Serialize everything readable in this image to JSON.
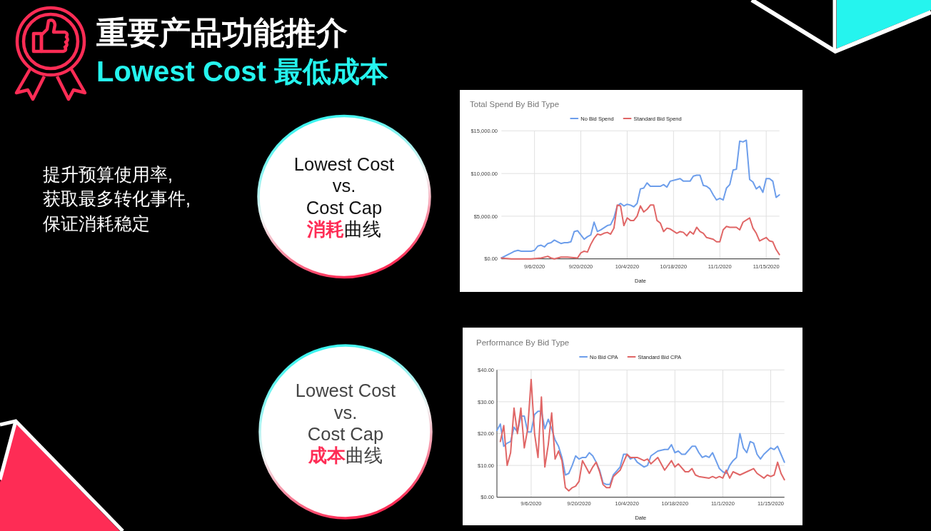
{
  "chart_data": [
    {
      "type": "other",
      "title": "重要产品功能推介",
      "subtitle": "Lowest Cost 最低成本",
      "annotations": [
        "提升预算使用率,",
        "获取最多转化事件,",
        "保证消耗稳定"
      ]
    },
    {
      "type": "other",
      "annotations": [
        "Lowest Cost",
        "vs.",
        "Cost Cap",
        "消耗",
        "曲线"
      ]
    },
    {
      "type": "line",
      "title": "Total Spend By Bid Type",
      "xlabel": "Date",
      "legend": "top",
      "grid": true,
      "xlim": [
        "2020-08-27",
        "2020-11-19"
      ],
      "xticks": [
        {
          "value": "2020-09-06",
          "label": "9/6/2020"
        },
        {
          "value": "2020-09-20",
          "label": "9/20/2020"
        },
        {
          "value": "2020-10-04",
          "label": "10/4/2020"
        },
        {
          "value": "2020-10-18",
          "label": "10/18/2020"
        },
        {
          "value": "2020-11-01",
          "label": "11/1/2020"
        },
        {
          "value": "2020-11-15",
          "label": "11/15/2020"
        }
      ],
      "ylim": [
        0,
        15000
      ],
      "yticks": [
        {
          "value": 0,
          "label": "$0.00"
        },
        {
          "value": 5000,
          "label": "$5,000.00"
        },
        {
          "value": 10000,
          "label": "$10,000.00"
        },
        {
          "value": 15000,
          "label": "$15,000.00"
        }
      ],
      "series": [
        {
          "name": "No Bid Spend",
          "color": "#6d9eeb",
          "x": [
            "2020-08-27",
            "2020-08-29",
            "2020-08-30",
            "2020-08-31",
            "2020-09-01",
            "2020-09-02",
            "2020-09-03",
            "2020-09-05",
            "2020-09-06",
            "2020-09-07",
            "2020-09-08",
            "2020-09-09",
            "2020-09-10",
            "2020-09-11",
            "2020-09-12",
            "2020-09-13",
            "2020-09-14",
            "2020-09-15",
            "2020-09-16",
            "2020-09-17",
            "2020-09-18",
            "2020-09-19",
            "2020-09-21",
            "2020-09-22",
            "2020-09-23",
            "2020-09-24",
            "2020-09-25",
            "2020-09-26",
            "2020-09-28",
            "2020-09-29",
            "2020-09-30",
            "2020-10-01",
            "2020-10-02",
            "2020-10-03",
            "2020-10-04",
            "2020-10-05",
            "2020-10-06",
            "2020-10-07",
            "2020-10-08",
            "2020-10-09",
            "2020-10-10",
            "2020-10-11",
            "2020-10-14",
            "2020-10-15",
            "2020-10-16",
            "2020-10-17",
            "2020-10-19",
            "2020-10-20",
            "2020-10-21",
            "2020-10-23",
            "2020-10-24",
            "2020-10-25",
            "2020-10-26",
            "2020-10-27",
            "2020-10-28",
            "2020-10-29",
            "2020-10-30",
            "2020-10-31",
            "2020-11-01",
            "2020-11-02",
            "2020-11-03",
            "2020-11-04",
            "2020-11-05",
            "2020-11-06",
            "2020-11-07",
            "2020-11-08",
            "2020-11-09",
            "2020-11-10",
            "2020-11-11",
            "2020-11-12",
            "2020-11-13",
            "2020-11-14",
            "2020-11-15",
            "2020-11-16",
            "2020-11-17",
            "2020-11-18",
            "2020-11-19"
          ],
          "values": [
            100,
            500,
            700,
            900,
            1000,
            900,
            900,
            900,
            1000,
            1500,
            1600,
            1400,
            1800,
            1900,
            2200,
            2000,
            1800,
            1900,
            1900,
            2000,
            3200,
            3300,
            2300,
            2600,
            2800,
            4300,
            3200,
            3400,
            3900,
            4000,
            4800,
            6200,
            6500,
            6200,
            6400,
            6300,
            6100,
            6500,
            8200,
            8300,
            8900,
            8500,
            8500,
            8700,
            8400,
            9100,
            9300,
            9400,
            9100,
            9100,
            9700,
            9800,
            9800,
            8600,
            8500,
            8200,
            7500,
            6900,
            7100,
            6900,
            8300,
            8700,
            10400,
            10500,
            13800,
            13700,
            13900,
            9300,
            9000,
            8200,
            8500,
            7800,
            9400,
            9400,
            9100,
            7200,
            7500
          ]
        },
        {
          "name": "Standard Bid Spend",
          "color": "#e06666",
          "x": [
            "2020-08-27",
            "2020-08-30",
            "2020-09-05",
            "2020-09-08",
            "2020-09-10",
            "2020-09-11",
            "2020-09-12",
            "2020-09-14",
            "2020-09-16",
            "2020-09-19",
            "2020-09-20",
            "2020-09-21",
            "2020-09-22",
            "2020-09-23",
            "2020-09-24",
            "2020-09-25",
            "2020-09-26",
            "2020-09-27",
            "2020-09-28",
            "2020-09-29",
            "2020-09-30",
            "2020-10-01",
            "2020-10-02",
            "2020-10-03",
            "2020-10-04",
            "2020-10-05",
            "2020-10-06",
            "2020-10-07",
            "2020-10-08",
            "2020-10-09",
            "2020-10-10",
            "2020-10-11",
            "2020-10-12",
            "2020-10-13",
            "2020-10-14",
            "2020-10-15",
            "2020-10-16",
            "2020-10-17",
            "2020-10-19",
            "2020-10-20",
            "2020-10-21",
            "2020-10-22",
            "2020-10-23",
            "2020-10-24",
            "2020-10-25",
            "2020-10-26",
            "2020-10-27",
            "2020-10-28",
            "2020-10-30",
            "2020-10-31",
            "2020-11-01",
            "2020-11-02",
            "2020-11-03",
            "2020-11-04",
            "2020-11-05",
            "2020-11-06",
            "2020-11-07",
            "2020-11-08",
            "2020-11-10",
            "2020-11-11",
            "2020-11-12",
            "2020-11-13",
            "2020-11-14",
            "2020-11-15",
            "2020-11-16",
            "2020-11-17",
            "2020-11-18",
            "2020-11-19"
          ],
          "values": [
            100,
            0,
            0,
            100,
            300,
            100,
            0,
            200,
            200,
            100,
            700,
            900,
            800,
            1700,
            2400,
            2900,
            2800,
            3000,
            3100,
            2900,
            3600,
            6300,
            6200,
            3900,
            4800,
            4500,
            4500,
            5000,
            6200,
            5500,
            5800,
            6300,
            6300,
            4500,
            4200,
            3200,
            3600,
            3500,
            3000,
            3200,
            3100,
            2700,
            3200,
            2900,
            3700,
            3200,
            3000,
            2500,
            2300,
            2000,
            2000,
            3400,
            3800,
            3700,
            3700,
            3700,
            3400,
            4300,
            4800,
            3600,
            3000,
            2100,
            2300,
            2500,
            2100,
            2000,
            1100,
            500
          ]
        }
      ]
    },
    {
      "type": "other",
      "annotations": [
        "Lowest Cost",
        "vs.",
        "Cost Cap",
        "成本",
        "曲线"
      ]
    },
    {
      "type": "line",
      "title": "Performance By Bid Type",
      "xlabel": "Date",
      "legend": "top",
      "grid": true,
      "xlim": [
        "2020-08-27",
        "2020-11-19"
      ],
      "xticks": [
        {
          "value": "2020-09-06",
          "label": "9/6/2020"
        },
        {
          "value": "2020-09-20",
          "label": "9/20/2020"
        },
        {
          "value": "2020-10-04",
          "label": "10/4/2020"
        },
        {
          "value": "2020-10-18",
          "label": "10/18/2020"
        },
        {
          "value": "2020-11-01",
          "label": "11/1/2020"
        },
        {
          "value": "2020-11-15",
          "label": "11/15/2020"
        }
      ],
      "ylim": [
        0,
        40
      ],
      "yticks": [
        {
          "value": 0,
          "label": "$0.00"
        },
        {
          "value": 10,
          "label": "$10.00"
        },
        {
          "value": 20,
          "label": "$20.00"
        },
        {
          "value": 30,
          "label": "$30.00"
        },
        {
          "value": 40,
          "label": "$40.00"
        }
      ],
      "series": [
        {
          "name": "No Bid CPA",
          "color": "#6d9eeb",
          "x": [
            "2020-08-27",
            "2020-08-28",
            "2020-08-29",
            "2020-08-30",
            "2020-08-31",
            "2020-09-01",
            "2020-09-02",
            "2020-09-03",
            "2020-09-04",
            "2020-09-05",
            "2020-09-06",
            "2020-09-07",
            "2020-09-08",
            "2020-09-09",
            "2020-09-10",
            "2020-09-11",
            "2020-09-12",
            "2020-09-13",
            "2020-09-14",
            "2020-09-15",
            "2020-09-16",
            "2020-09-17",
            "2020-09-18",
            "2020-09-19",
            "2020-09-20",
            "2020-09-21",
            "2020-09-22",
            "2020-09-23",
            "2020-09-24",
            "2020-09-25",
            "2020-09-26",
            "2020-09-27",
            "2020-09-28",
            "2020-09-29",
            "2020-09-30",
            "2020-10-02",
            "2020-10-03",
            "2020-10-04",
            "2020-10-05",
            "2020-10-06",
            "2020-10-07",
            "2020-10-09",
            "2020-10-10",
            "2020-10-11",
            "2020-10-13",
            "2020-10-15",
            "2020-10-16",
            "2020-10-17",
            "2020-10-18",
            "2020-10-19",
            "2020-10-20",
            "2020-10-21",
            "2020-10-23",
            "2020-10-24",
            "2020-10-25",
            "2020-10-26",
            "2020-10-27",
            "2020-10-28",
            "2020-10-29",
            "2020-10-30",
            "2020-10-31",
            "2020-11-01",
            "2020-11-02",
            "2020-11-03",
            "2020-11-04",
            "2020-11-05",
            "2020-11-06",
            "2020-11-07",
            "2020-11-08",
            "2020-11-09",
            "2020-11-10",
            "2020-11-11",
            "2020-11-12",
            "2020-11-13",
            "2020-11-15",
            "2020-11-16",
            "2020-11-17",
            "2020-11-18",
            "2020-11-19"
          ],
          "values": [
            21,
            23,
            16,
            17,
            17.5,
            22,
            20.5,
            25.5,
            25.5,
            20.5,
            20.5,
            26,
            27,
            27,
            21.5,
            24.5,
            21.5,
            18,
            16,
            12.5,
            7,
            7.5,
            10,
            13,
            12,
            12.5,
            12.5,
            14,
            13,
            11,
            8.5,
            4.5,
            4,
            4,
            7,
            9.5,
            13.5,
            13.5,
            12,
            12.5,
            11,
            9.5,
            10,
            13,
            14.5,
            15,
            15,
            16.5,
            14,
            14.5,
            13.5,
            13.5,
            16,
            16,
            14,
            12.5,
            13,
            12.5,
            14,
            11.5,
            9,
            8,
            7.5,
            10,
            11.5,
            12.5,
            20,
            15.5,
            14,
            17.5,
            17,
            13.5,
            12,
            13.5,
            15.5,
            15,
            16,
            13.5,
            11
          ]
        },
        {
          "name": "Standard Bid CPA",
          "color": "#e06666",
          "x": [
            "2020-08-28",
            "2020-08-29",
            "2020-08-30",
            "2020-08-31",
            "2020-09-01",
            "2020-09-02",
            "2020-09-03",
            "2020-09-04",
            "2020-09-05",
            "2020-09-06",
            "2020-09-07",
            "2020-09-08",
            "2020-09-09",
            "2020-09-10",
            "2020-09-11",
            "2020-09-12",
            "2020-09-13",
            "2020-09-14",
            "2020-09-15",
            "2020-09-16",
            "2020-09-17",
            "2020-09-18",
            "2020-09-19",
            "2020-09-20",
            "2020-09-21",
            "2020-09-22",
            "2020-09-23",
            "2020-09-24",
            "2020-09-25",
            "2020-09-26",
            "2020-09-27",
            "2020-09-28",
            "2020-09-29",
            "2020-09-30",
            "2020-10-02",
            "2020-10-03",
            "2020-10-04",
            "2020-10-05",
            "2020-10-06",
            "2020-10-07",
            "2020-10-08",
            "2020-10-09",
            "2020-10-10",
            "2020-10-11",
            "2020-10-13",
            "2020-10-15",
            "2020-10-17",
            "2020-10-18",
            "2020-10-19",
            "2020-10-21",
            "2020-10-22",
            "2020-10-23",
            "2020-10-24",
            "2020-10-25",
            "2020-10-28",
            "2020-10-29",
            "2020-10-30",
            "2020-10-31",
            "2020-11-01",
            "2020-11-02",
            "2020-11-03",
            "2020-11-04",
            "2020-11-05",
            "2020-11-06",
            "2020-11-08",
            "2020-11-10",
            "2020-11-11",
            "2020-11-13",
            "2020-11-14",
            "2020-11-15",
            "2020-11-16",
            "2020-11-17",
            "2020-11-18",
            "2020-11-19"
          ],
          "values": [
            17.5,
            22.5,
            10,
            14,
            28,
            20,
            28,
            15.5,
            21.5,
            37,
            20,
            12.5,
            31.5,
            9.5,
            16.5,
            26.5,
            12,
            14.5,
            11.5,
            3,
            2,
            3,
            3.5,
            5,
            11.5,
            9.5,
            7.5,
            9.5,
            11,
            8,
            4,
            3,
            3,
            6.5,
            8.5,
            11,
            13.5,
            12.5,
            12.5,
            12.5,
            12,
            11.5,
            12,
            10.5,
            12.5,
            8.5,
            11.5,
            9.5,
            10.5,
            8,
            8,
            9,
            7,
            6.5,
            6,
            6.5,
            6,
            6.5,
            6,
            8.5,
            6,
            8,
            7.5,
            7,
            8,
            9,
            7.5,
            6,
            7,
            6.5,
            7,
            11,
            7.5,
            5.5
          ]
        }
      ]
    }
  ]
}
